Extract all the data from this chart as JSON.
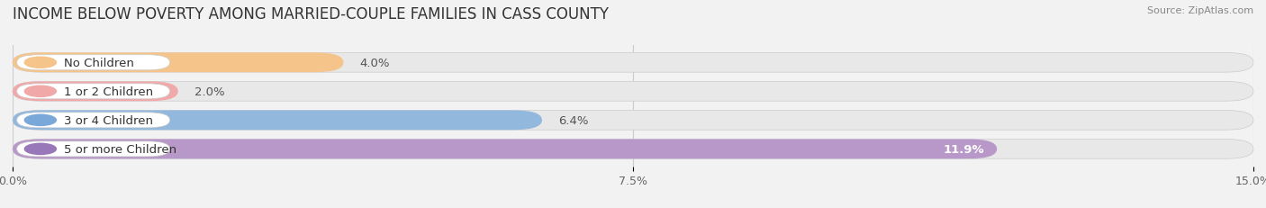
{
  "title": "INCOME BELOW POVERTY AMONG MARRIED-COUPLE FAMILIES IN CASS COUNTY",
  "source": "Source: ZipAtlas.com",
  "categories": [
    "No Children",
    "1 or 2 Children",
    "3 or 4 Children",
    "5 or more Children"
  ],
  "values": [
    4.0,
    2.0,
    6.4,
    11.9
  ],
  "bar_colors": [
    "#f5c48a",
    "#f0a8a8",
    "#92b8de",
    "#b898c8"
  ],
  "label_dot_colors": [
    "#f5c48a",
    "#f0a8a8",
    "#7aa8d8",
    "#9878b8"
  ],
  "xlim": [
    0,
    15.0
  ],
  "xticks": [
    0.0,
    7.5,
    15.0
  ],
  "xtick_labels": [
    "0.0%",
    "7.5%",
    "15.0%"
  ],
  "background_color": "#f2f2f2",
  "bar_background_color": "#e8e8e8",
  "title_fontsize": 12,
  "label_fontsize": 9.5,
  "tick_fontsize": 9,
  "value_label_color_inside": "#ffffff",
  "value_label_color_outside": "#666666"
}
